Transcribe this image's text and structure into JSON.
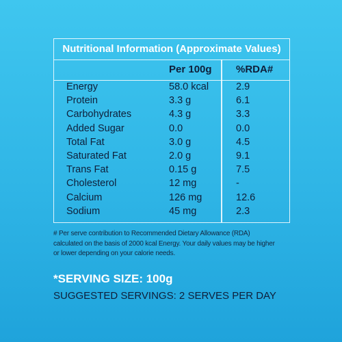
{
  "table": {
    "title": "Nutritional Information (Approximate Values)",
    "col_per": "Per 100g",
    "col_rda": "%RDA#",
    "rows": [
      {
        "name": "Energy",
        "per100g": "58.0 kcal",
        "rda": "2.9"
      },
      {
        "name": "Protein",
        "per100g": "3.3 g",
        "rda": "6.1"
      },
      {
        "name": "Carbohydrates",
        "per100g": "4.3 g",
        "rda": "3.3"
      },
      {
        "name": "Added Sugar",
        "per100g": "0.0",
        "rda": "0.0"
      },
      {
        "name": "Total Fat",
        "per100g": "3.0 g",
        "rda": "4.5"
      },
      {
        "name": "Saturated Fat",
        "per100g": "2.0 g",
        "rda": "9.1"
      },
      {
        "name": "Trans Fat",
        "per100g": "0.15 g",
        "rda": "7.5"
      },
      {
        "name": "Cholesterol",
        "per100g": "12 mg",
        "rda": "-"
      },
      {
        "name": "Calcium",
        "per100g": "126 mg",
        "rda": "12.6"
      },
      {
        "name": "Sodium",
        "per100g": "45 mg",
        "rda": "2.3"
      }
    ]
  },
  "footnote": "# Per serve contribution to Recommended Dietary Allowance (RDA) calculated on the basis of 2000 kcal Energy. Your daily values may be higher or lower depending on your calorie needs.",
  "serving_size": "*SERVING SIZE: 100g",
  "suggested_servings": "SUGGESTED SERVINGS: 2 SERVES PER DAY"
}
